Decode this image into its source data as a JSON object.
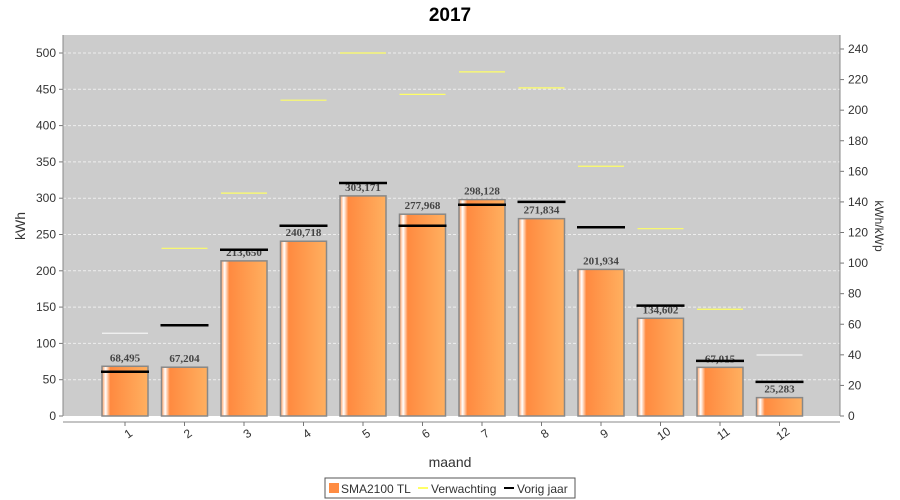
{
  "chart_data": {
    "type": "bar",
    "title": "2017",
    "xlabel": "maand",
    "ylabel": "kWh",
    "y2label": "kWh/kWp",
    "ylim": [
      0,
      525
    ],
    "y2lim": [
      0,
      250
    ],
    "yticks": [
      0,
      50,
      100,
      150,
      200,
      250,
      300,
      350,
      400,
      450,
      500
    ],
    "y2ticks": [
      0,
      20,
      40,
      60,
      80,
      100,
      120,
      140,
      160,
      180,
      200,
      220,
      240
    ],
    "grid": true,
    "legend_position": "bottom",
    "categories": [
      "1",
      "2",
      "3",
      "4",
      "5",
      "6",
      "7",
      "8",
      "9",
      "10",
      "11",
      "12"
    ],
    "series": [
      {
        "name": "SMA2100 TL",
        "type": "bar",
        "color": "#ff8c42",
        "values": [
          68.495,
          67.204,
          213.65,
          240.718,
          303.171,
          277.968,
          298.128,
          271.834,
          201.934,
          134.602,
          67.015,
          25.283
        ],
        "labels": [
          "68,495",
          "67,204",
          "213,650",
          "240,718",
          "303,171",
          "277,968",
          "298,128",
          "271,834",
          "201,934",
          "134,602",
          "67,015",
          "25,283"
        ]
      },
      {
        "name": "Verwachting",
        "type": "marker",
        "color": "#ffff66",
        "values": [
          114,
          231,
          307,
          435,
          500,
          443,
          474,
          452,
          344,
          258,
          147,
          84
        ]
      },
      {
        "name": "Vorig jaar",
        "type": "marker",
        "color": "#000000",
        "values": [
          61,
          125,
          229,
          262,
          321,
          262,
          291,
          295,
          260,
          152,
          76,
          47
        ]
      }
    ]
  }
}
